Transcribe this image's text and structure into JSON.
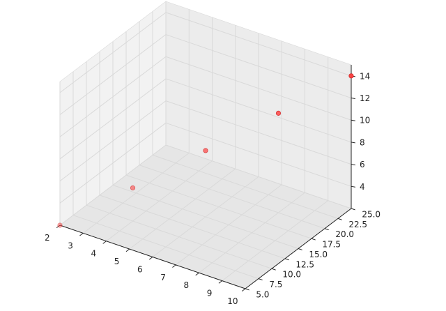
{
  "chart_data": {
    "type": "scatter",
    "projection": "3d",
    "points": [
      {
        "x": 2,
        "y": 5,
        "z": 2
      },
      {
        "x": 4,
        "y": 10,
        "z": 5
      },
      {
        "x": 6,
        "y": 15,
        "z": 8
      },
      {
        "x": 8,
        "y": 20,
        "z": 11
      },
      {
        "x": 10,
        "y": 25,
        "z": 14
      }
    ],
    "marker_color": "#ff4040",
    "marker_edge_color": "#cc2020",
    "x_ticks": [
      "2",
      "3",
      "4",
      "5",
      "6",
      "7",
      "8",
      "9",
      "10"
    ],
    "y_ticks": [
      "5.0",
      "7.5",
      "10.0",
      "12.5",
      "15.0",
      "17.5",
      "20.0",
      "22.5",
      "25.0"
    ],
    "z_ticks": [
      "4",
      "6",
      "8",
      "10",
      "12",
      "14"
    ],
    "xlim": [
      2,
      10
    ],
    "ylim": [
      5,
      25
    ],
    "zlim": [
      2,
      15
    ],
    "grid": true,
    "pane_colors": [
      "#f2f2f2",
      "#ececec",
      "#e6e6e6"
    ],
    "grid_color": "#d9d9d9",
    "axis_color": "#222222"
  }
}
